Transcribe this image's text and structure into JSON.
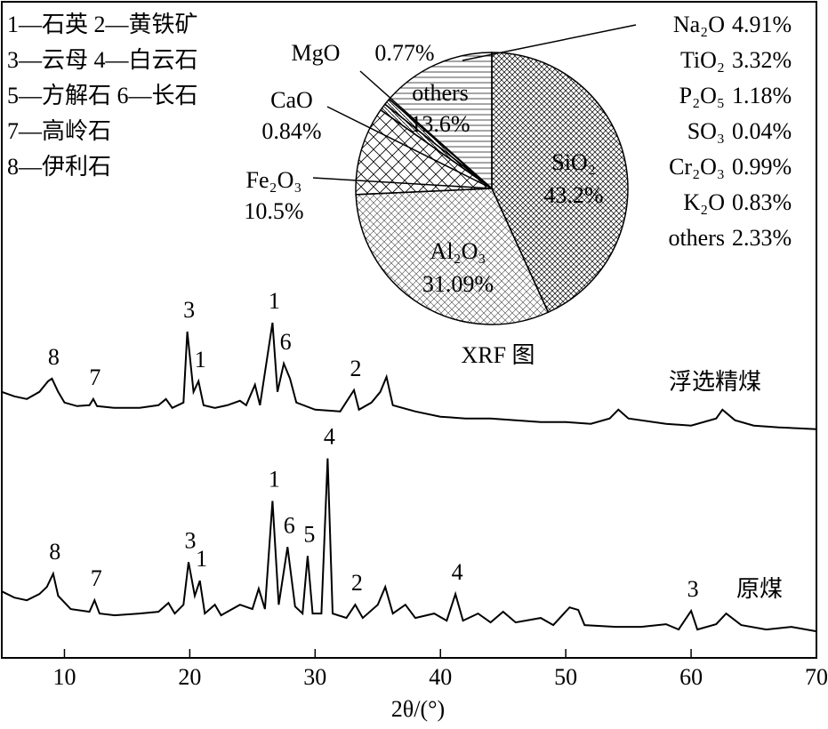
{
  "chart_data": [
    {
      "type": "line",
      "xlabel": "2θ/(°)",
      "xlim": [
        5,
        70
      ],
      "xticks": [
        10,
        20,
        30,
        40,
        50,
        60,
        70
      ],
      "ylim": [
        0,
        74
      ],
      "legend_notes": [
        "1—石英 2—黄铁矿",
        "3—云母 4—白云石",
        "5—方解石 6—长石",
        "7—高岭石",
        "8—伊利石"
      ],
      "series": [
        {
          "name": "浮选精煤",
          "color": "#000000",
          "x": [
            5,
            6,
            7,
            8,
            8.7,
            9,
            9.5,
            10,
            11,
            12,
            12.3,
            12.6,
            14,
            16,
            17.5,
            18.1,
            18.6,
            19.5,
            19.8,
            20.3,
            20.7,
            21.1,
            22,
            23,
            24,
            24.5,
            25.2,
            25.6,
            26.6,
            27,
            27.5,
            28,
            28.5,
            30,
            32,
            33.1,
            33.5,
            34.5,
            35.2,
            35.7,
            36.2,
            38,
            40,
            42,
            44,
            46,
            48,
            50,
            52,
            53.5,
            54.2,
            55,
            58,
            60,
            62,
            62.5,
            63.5,
            65,
            67,
            70
          ],
          "values": [
            30,
            29.5,
            29.2,
            30,
            31.2,
            31.5,
            30,
            28.8,
            28.4,
            28.5,
            29.2,
            28.4,
            28.2,
            28.2,
            28.5,
            29.2,
            28.2,
            28.8,
            36.8,
            30,
            31.2,
            28.5,
            28.2,
            28.5,
            29,
            28.5,
            30.8,
            28.5,
            37.8,
            30,
            33.2,
            31.5,
            28.8,
            28,
            27.8,
            30.2,
            28,
            28.8,
            30,
            31.7,
            28.5,
            27.8,
            27.2,
            27,
            27,
            26.8,
            26.6,
            26.6,
            26.4,
            27,
            28,
            27,
            26.4,
            26.2,
            27,
            28,
            26.8,
            26.2,
            26,
            25.8
          ],
          "annotations": [
            {
              "label": "8",
              "x": 9
            },
            {
              "label": "7",
              "x": 12.3
            },
            {
              "label": "3",
              "x": 19.8
            },
            {
              "label": "1",
              "x": 20.7
            },
            {
              "label": "1",
              "x": 26.6
            },
            {
              "label": "6",
              "x": 27.5
            },
            {
              "label": "2",
              "x": 33.1
            }
          ]
        },
        {
          "name": "原煤",
          "color": "#000000",
          "x": [
            5,
            6,
            7,
            8,
            8.6,
            9.1,
            9.5,
            10.5,
            12,
            12.4,
            12.8,
            14,
            16,
            17.5,
            18.3,
            18.8,
            19.5,
            19.9,
            20.4,
            20.8,
            21.2,
            22,
            22.5,
            24,
            25,
            25.5,
            26,
            26.6,
            27.1,
            27.8,
            28.4,
            29,
            29.4,
            29.8,
            30.5,
            31,
            31.4,
            32.5,
            33.2,
            33.8,
            35,
            35.6,
            36.2,
            37.2,
            38,
            39.5,
            40.5,
            41.2,
            41.8,
            43,
            44,
            45,
            46,
            48,
            49,
            50.3,
            51,
            51.5,
            54,
            56,
            58,
            59,
            60,
            60.5,
            62,
            62.8,
            64,
            66,
            68,
            70
          ],
          "values": [
            7.5,
            6.8,
            6.5,
            7.2,
            8,
            9.5,
            7,
            5.5,
            5.2,
            6.5,
            5,
            4.8,
            5,
            5.2,
            6.2,
            5,
            6,
            10.8,
            7,
            8.7,
            5,
            6,
            4.8,
            6,
            5.5,
            7.8,
            5.5,
            17.7,
            6,
            12.5,
            5.8,
            5,
            11.5,
            5,
            5,
            22.5,
            5,
            4.5,
            6,
            4.5,
            6,
            8,
            5,
            6,
            4.5,
            5,
            4.2,
            7.2,
            4.2,
            5,
            4,
            5.2,
            4,
            4.5,
            3.7,
            5.7,
            5.4,
            3.7,
            3.5,
            3.5,
            3.8,
            3.2,
            5.3,
            3.2,
            3.8,
            5,
            3.7,
            3.2,
            3.5,
            3
          ],
          "annotations": [
            {
              "label": "8",
              "x": 9.1
            },
            {
              "label": "7",
              "x": 12.4
            },
            {
              "label": "3",
              "x": 19.9
            },
            {
              "label": "1",
              "x": 20.8
            },
            {
              "label": "1",
              "x": 26.6
            },
            {
              "label": "6",
              "x": 27.8
            },
            {
              "label": "5",
              "x": 29.4
            },
            {
              "label": "4",
              "x": 31
            },
            {
              "label": "2",
              "x": 33.2
            },
            {
              "label": "4",
              "x": 41.2
            },
            {
              "label": "3",
              "x": 60
            }
          ]
        }
      ]
    },
    {
      "type": "pie",
      "title": "XRF 图",
      "categories": [
        "SiO₂",
        "Al₂O₃",
        "Fe₂O₃",
        "CaO",
        "MgO",
        "others"
      ],
      "values": [
        43.2,
        31.09,
        10.5,
        0.84,
        0.77,
        13.6
      ],
      "value_labels": [
        "43.2%",
        "31.09%",
        "10.5%",
        "0.84%",
        "0.77%",
        "13.6%"
      ],
      "others_breakdown": [
        {
          "name": "Na₂O",
          "label": "4.91%"
        },
        {
          "name": "TiO₂",
          "label": "3.32%"
        },
        {
          "name": "P₂O₅",
          "label": "1.18%"
        },
        {
          "name": "SO₃",
          "label": "0.04%"
        },
        {
          "name": "Cr₂O₃",
          "label": "0.99%"
        },
        {
          "name": "K₂O",
          "label": "0.83%"
        },
        {
          "name": "others",
          "label": "2.33%"
        }
      ]
    }
  ]
}
